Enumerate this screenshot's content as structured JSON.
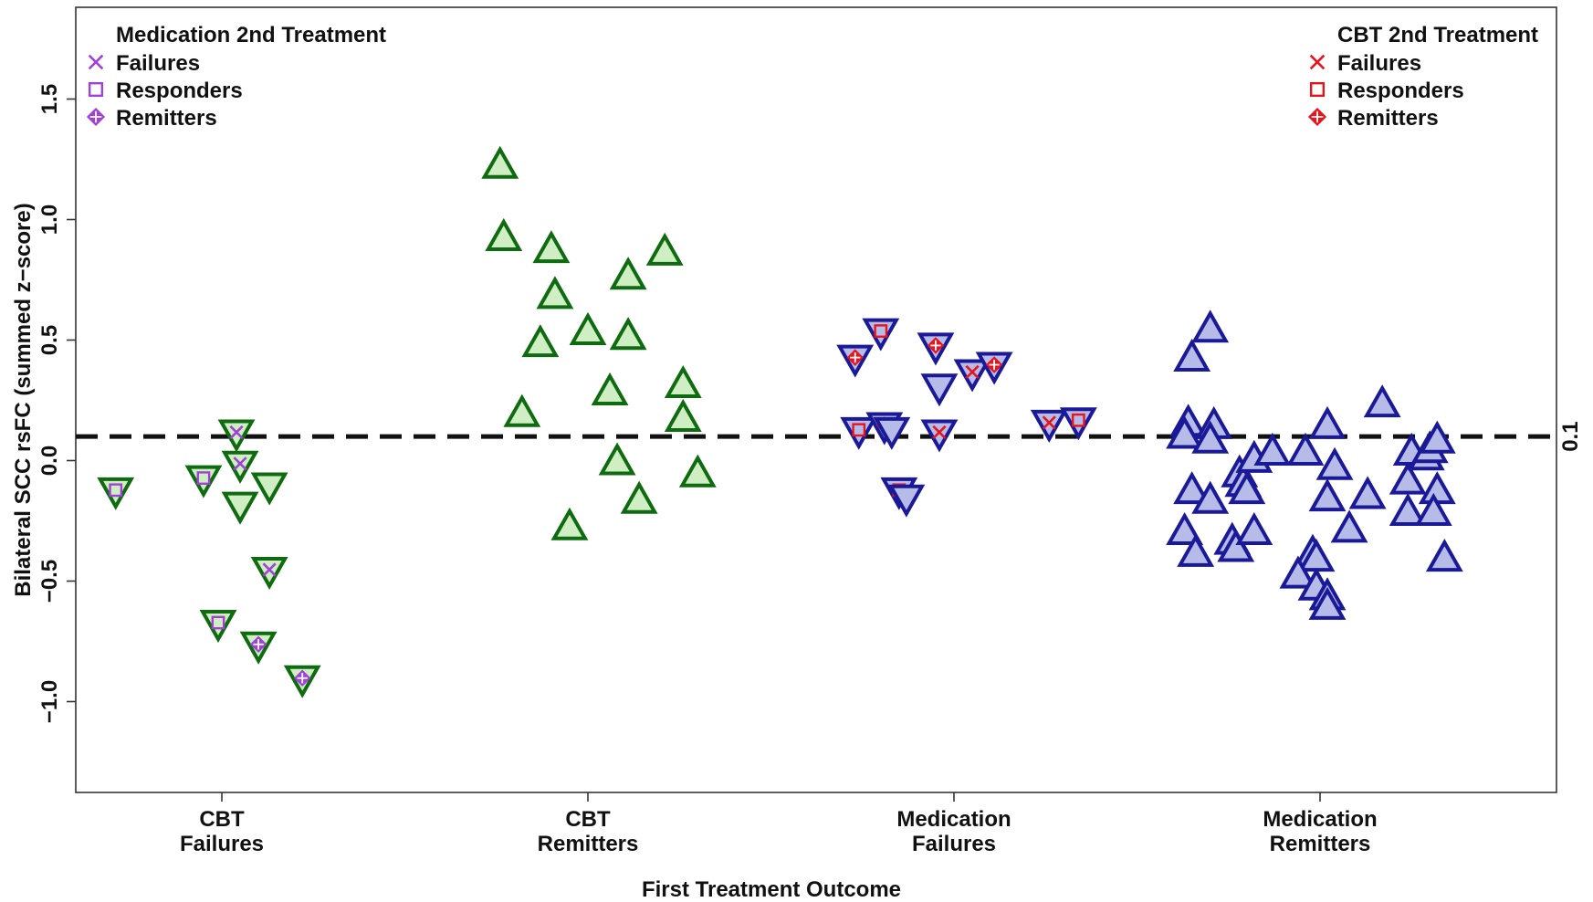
{
  "chart_data": {
    "type": "scatter",
    "xlabel": "First Treatment Outcome",
    "ylabel": "Bilateral SCC rsFC (summed z−score)",
    "ylim": [
      -1.35,
      1.8
    ],
    "yticks": [
      1.5,
      1.0,
      0.5,
      0.0,
      -0.5,
      -1.0
    ],
    "ytick_labels": [
      "1.5",
      "1.0",
      "0.5",
      "0.0",
      "−0.5",
      "−1.0"
    ],
    "categories": [
      {
        "line1": "CBT",
        "line2": "Failures"
      },
      {
        "line1": "CBT",
        "line2": "Remitters"
      },
      {
        "line1": "Medication",
        "line2": "Failures"
      },
      {
        "line1": "Medication",
        "line2": "Remitters"
      }
    ],
    "threshold": {
      "value": 0.1,
      "label": "0.1"
    },
    "colors": {
      "cbt": "#0f6b0f",
      "cbt_fill": "#cfeec4",
      "med": "#1a1a99",
      "med_fill": "#b6bbe8",
      "med_second": "#a241d6",
      "cbt_second": "#e8141c"
    },
    "legends": [
      {
        "title": "Medication 2nd Treatment",
        "position": "top-left",
        "color": "#a241d6",
        "items": [
          {
            "marker": "x",
            "label": "Failures"
          },
          {
            "marker": "square",
            "label": "Responders"
          },
          {
            "marker": "diamond",
            "label": "Remitters"
          }
        ]
      },
      {
        "title": "CBT 2nd Treatment",
        "position": "top-right",
        "color": "#e8141c",
        "items": [
          {
            "marker": "x",
            "label": "Failures"
          },
          {
            "marker": "square",
            "label": "Responders"
          },
          {
            "marker": "diamond",
            "label": "Remitters"
          }
        ]
      }
    ],
    "series": [
      {
        "group": 1,
        "points": [
          {
            "x": 0.71,
            "y": -0.13,
            "tri": "down",
            "inner": "square"
          },
          {
            "x": 0.95,
            "y": -0.08,
            "tri": "down",
            "inner": "square"
          },
          {
            "x": 1.04,
            "y": 0.11,
            "tri": "down",
            "inner": "x"
          },
          {
            "x": 1.05,
            "y": -0.02,
            "tri": "down",
            "inner": "x"
          },
          {
            "x": 1.05,
            "y": -0.19,
            "tri": "down"
          },
          {
            "x": 1.13,
            "y": -0.11,
            "tri": "down"
          },
          {
            "x": 1.13,
            "y": -0.46,
            "tri": "down",
            "inner": "x"
          },
          {
            "x": 0.99,
            "y": -0.68,
            "tri": "down",
            "inner": "square"
          },
          {
            "x": 1.1,
            "y": -0.77,
            "tri": "down",
            "inner": "diamond"
          },
          {
            "x": 1.22,
            "y": -0.91,
            "tri": "down",
            "inner": "diamond"
          }
        ]
      },
      {
        "group": 2,
        "points": [
          {
            "x": 1.76,
            "y": 1.23,
            "tri": "up"
          },
          {
            "x": 1.77,
            "y": 0.93,
            "tri": "up"
          },
          {
            "x": 1.9,
            "y": 0.88,
            "tri": "up"
          },
          {
            "x": 1.91,
            "y": 0.69,
            "tri": "up"
          },
          {
            "x": 1.87,
            "y": 0.49,
            "tri": "up"
          },
          {
            "x": 1.82,
            "y": 0.2,
            "tri": "up"
          },
          {
            "x": 1.95,
            "y": -0.27,
            "tri": "up"
          },
          {
            "x": 2.0,
            "y": 0.54,
            "tri": "up"
          },
          {
            "x": 2.06,
            "y": 0.29,
            "tri": "up"
          },
          {
            "x": 2.11,
            "y": 0.77,
            "tri": "up"
          },
          {
            "x": 2.11,
            "y": 0.52,
            "tri": "up"
          },
          {
            "x": 2.21,
            "y": 0.87,
            "tri": "up"
          },
          {
            "x": 2.08,
            "y": 0.0,
            "tri": "up"
          },
          {
            "x": 2.14,
            "y": -0.16,
            "tri": "up"
          },
          {
            "x": 2.26,
            "y": 0.32,
            "tri": "up"
          },
          {
            "x": 2.26,
            "y": 0.18,
            "tri": "up"
          },
          {
            "x": 2.3,
            "y": -0.05,
            "tri": "up"
          }
        ]
      },
      {
        "group": 3,
        "points": [
          {
            "x": 2.73,
            "y": 0.42,
            "tri": "down",
            "inner": "diamond"
          },
          {
            "x": 2.8,
            "y": 0.53,
            "tri": "down",
            "inner": "square"
          },
          {
            "x": 2.95,
            "y": 0.47,
            "tri": "down",
            "inner": "diamond"
          },
          {
            "x": 2.96,
            "y": 0.3,
            "tri": "down"
          },
          {
            "x": 3.05,
            "y": 0.36,
            "tri": "down",
            "inner": "x"
          },
          {
            "x": 3.11,
            "y": 0.39,
            "tri": "down",
            "inner": "diamond"
          },
          {
            "x": 2.74,
            "y": 0.12,
            "tri": "down",
            "inner": "square"
          },
          {
            "x": 2.81,
            "y": 0.14,
            "tri": "down",
            "inner": "diamond"
          },
          {
            "x": 2.83,
            "y": 0.12,
            "tri": "down"
          },
          {
            "x": 2.96,
            "y": 0.11,
            "tri": "down",
            "inner": "x"
          },
          {
            "x": 2.85,
            "y": -0.13,
            "tri": "down",
            "inner": "square"
          },
          {
            "x": 2.87,
            "y": -0.16,
            "tri": "down"
          },
          {
            "x": 3.26,
            "y": 0.15,
            "tri": "down",
            "inner": "x"
          },
          {
            "x": 3.34,
            "y": 0.16,
            "tri": "down",
            "inner": "square"
          }
        ]
      },
      {
        "group": 4,
        "points": [
          {
            "x": 3.7,
            "y": 0.55,
            "tri": "up"
          },
          {
            "x": 3.65,
            "y": 0.43,
            "tri": "up"
          },
          {
            "x": 3.64,
            "y": 0.16,
            "tri": "up"
          },
          {
            "x": 3.71,
            "y": 0.15,
            "tri": "up"
          },
          {
            "x": 3.63,
            "y": 0.11,
            "tri": "up"
          },
          {
            "x": 3.7,
            "y": 0.09,
            "tri": "up"
          },
          {
            "x": 3.65,
            "y": -0.12,
            "tri": "up"
          },
          {
            "x": 3.7,
            "y": -0.16,
            "tri": "up"
          },
          {
            "x": 3.63,
            "y": -0.29,
            "tri": "up"
          },
          {
            "x": 3.66,
            "y": -0.38,
            "tri": "up"
          },
          {
            "x": 3.76,
            "y": -0.33,
            "tri": "up"
          },
          {
            "x": 3.77,
            "y": -0.36,
            "tri": "up"
          },
          {
            "x": 3.82,
            "y": -0.29,
            "tri": "up"
          },
          {
            "x": 3.78,
            "y": -0.05,
            "tri": "up"
          },
          {
            "x": 3.79,
            "y": -0.09,
            "tri": "up"
          },
          {
            "x": 3.8,
            "y": -0.12,
            "tri": "up"
          },
          {
            "x": 3.82,
            "y": 0.01,
            "tri": "up"
          },
          {
            "x": 3.87,
            "y": 0.04,
            "tri": "up"
          },
          {
            "x": 3.96,
            "y": 0.04,
            "tri": "up"
          },
          {
            "x": 4.02,
            "y": 0.15,
            "tri": "up"
          },
          {
            "x": 4.04,
            "y": -0.02,
            "tri": "up"
          },
          {
            "x": 4.02,
            "y": -0.15,
            "tri": "up"
          },
          {
            "x": 4.08,
            "y": -0.28,
            "tri": "up"
          },
          {
            "x": 3.98,
            "y": -0.38,
            "tri": "up"
          },
          {
            "x": 3.99,
            "y": -0.4,
            "tri": "up"
          },
          {
            "x": 3.94,
            "y": -0.47,
            "tri": "up"
          },
          {
            "x": 3.99,
            "y": -0.52,
            "tri": "up"
          },
          {
            "x": 4.02,
            "y": -0.56,
            "tri": "up"
          },
          {
            "x": 4.02,
            "y": -0.6,
            "tri": "up"
          },
          {
            "x": 4.13,
            "y": -0.14,
            "tri": "up"
          },
          {
            "x": 4.17,
            "y": 0.24,
            "tri": "up"
          },
          {
            "x": 4.25,
            "y": 0.04,
            "tri": "up"
          },
          {
            "x": 4.24,
            "y": -0.08,
            "tri": "up"
          },
          {
            "x": 4.24,
            "y": -0.21,
            "tri": "up"
          },
          {
            "x": 4.29,
            "y": 0.02,
            "tri": "up"
          },
          {
            "x": 4.3,
            "y": 0.05,
            "tri": "up"
          },
          {
            "x": 4.32,
            "y": 0.09,
            "tri": "up"
          },
          {
            "x": 4.32,
            "y": -0.12,
            "tri": "up"
          },
          {
            "x": 4.31,
            "y": -0.21,
            "tri": "up"
          },
          {
            "x": 4.34,
            "y": -0.4,
            "tri": "up"
          }
        ]
      }
    ]
  }
}
